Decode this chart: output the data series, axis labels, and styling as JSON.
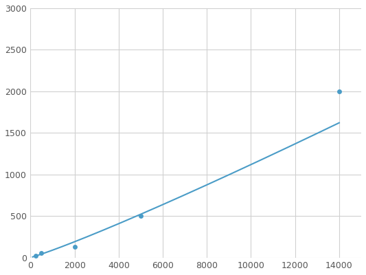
{
  "x": [
    250,
    500,
    2000,
    5000,
    14000
  ],
  "y": [
    20,
    50,
    125,
    500,
    2000
  ],
  "line_color": "#4a9cc7",
  "marker_color": "#4a9cc7",
  "marker_size": 5,
  "line_width": 1.5,
  "xlim": [
    0,
    15000
  ],
  "ylim": [
    0,
    3000
  ],
  "xticks": [
    0,
    2000,
    4000,
    6000,
    8000,
    10000,
    12000,
    14000
  ],
  "yticks": [
    0,
    500,
    1000,
    1500,
    2000,
    2500,
    3000
  ],
  "background_color": "#ffffff",
  "grid_color": "#d0d0d0",
  "figsize": [
    5.33,
    4.0
  ],
  "dpi": 100
}
